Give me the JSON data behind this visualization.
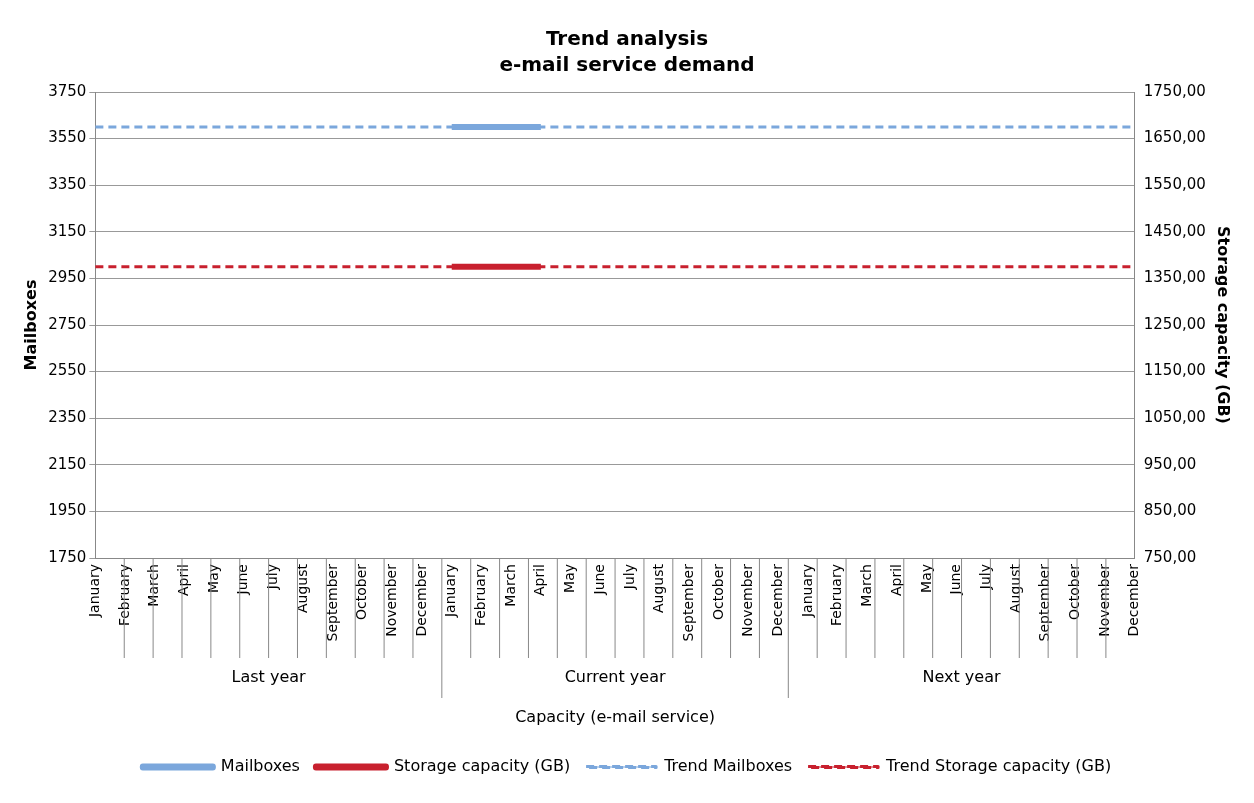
{
  "chart_data": {
    "type": "line",
    "title": "Trend analysis",
    "subtitle": "e-mail service demand",
    "xlabel": "Capacity (e-mail service)",
    "ylabel": "Mailboxes",
    "y2label": "Storage capacity (GB)",
    "categories": [
      "January",
      "February",
      "March",
      "April",
      "May",
      "June",
      "July",
      "August",
      "September",
      "October",
      "November",
      "December",
      "January",
      "February",
      "March",
      "April",
      "May",
      "June",
      "July",
      "August",
      "September",
      "October",
      "November",
      "December",
      "January",
      "February",
      "March",
      "April",
      "May",
      "June",
      "July",
      "August",
      "September",
      "October",
      "November",
      "December"
    ],
    "annotations": [
      "Last year",
      "Current year",
      "Next year"
    ],
    "series": [
      {
        "name": "Mailboxes",
        "color": "#7ba7dc",
        "line_style": "solid",
        "values": [
          null,
          null,
          null,
          null,
          null,
          null,
          null,
          null,
          null,
          null,
          null,
          null,
          3600,
          3600,
          3600,
          3600,
          null,
          null,
          null,
          null,
          null,
          null,
          null,
          null,
          null,
          null,
          null,
          null,
          null,
          null,
          null,
          null,
          null,
          null,
          null,
          null
        ]
      },
      {
        "name": "Storage capacity (GB)",
        "color": "#c8202e",
        "axis": "y2",
        "line_style": "solid",
        "values": [
          null,
          null,
          null,
          null,
          null,
          null,
          null,
          null,
          null,
          null,
          null,
          null,
          1375,
          1375,
          1375,
          1375,
          null,
          null,
          null,
          null,
          null,
          null,
          null,
          null,
          null,
          null,
          null,
          null,
          null,
          null,
          null,
          null,
          null,
          null,
          null,
          null
        ]
      },
      {
        "name": "Trend Mailboxes",
        "color": "#7ba7dc",
        "line_style": "dashed",
        "values": [
          3600,
          3600,
          3600,
          3600,
          3600,
          3600,
          3600,
          3600,
          3600,
          3600,
          3600,
          3600,
          3600,
          3600,
          3600,
          3600,
          3600,
          3600,
          3600,
          3600,
          3600,
          3600,
          3600,
          3600,
          3600,
          3600,
          3600,
          3600,
          3600,
          3600,
          3600,
          3600,
          3600,
          3600,
          3600,
          3600
        ]
      },
      {
        "name": "Trend Storage capacity (GB)",
        "color": "#c8202e",
        "axis": "y2",
        "line_style": "dashed",
        "values": [
          1375,
          1375,
          1375,
          1375,
          1375,
          1375,
          1375,
          1375,
          1375,
          1375,
          1375,
          1375,
          1375,
          1375,
          1375,
          1375,
          1375,
          1375,
          1375,
          1375,
          1375,
          1375,
          1375,
          1375,
          1375,
          1375,
          1375,
          1375,
          1375,
          1375,
          1375,
          1375,
          1375,
          1375,
          1375,
          1375
        ]
      }
    ],
    "ylim": [
      1750,
      3750
    ],
    "yticks": [
      1750,
      1950,
      2150,
      2350,
      2550,
      2750,
      2950,
      3150,
      3350,
      3550,
      3750
    ],
    "y2lim": [
      750,
      1750
    ],
    "y2ticks": [
      {
        "value": 750,
        "label": "750,00"
      },
      {
        "value": 850,
        "label": "850,00"
      },
      {
        "value": 950,
        "label": "950,00"
      },
      {
        "value": 1050,
        "label": "1050,00"
      },
      {
        "value": 1150,
        "label": "1150,00"
      },
      {
        "value": 1250,
        "label": "1250,00"
      },
      {
        "value": 1350,
        "label": "1350,00"
      },
      {
        "value": 1450,
        "label": "1450,00"
      },
      {
        "value": 1550,
        "label": "1550,00"
      },
      {
        "value": 1650,
        "label": "1650,00"
      },
      {
        "value": 1750,
        "label": "1750,00"
      }
    ],
    "grid": "y",
    "legend": "bottom",
    "marker": "none"
  }
}
